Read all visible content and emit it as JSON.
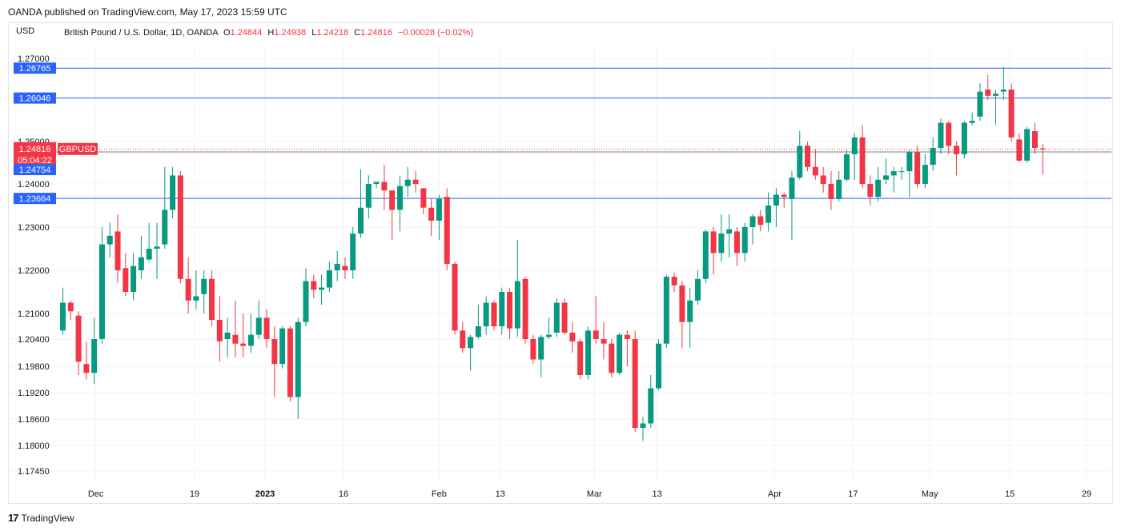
{
  "header": {
    "published": "OANDA published on TradingView.com, May 17, 2023 15:59 UTC",
    "currency": "USD",
    "legend": {
      "symbol": "British Pound / U.S. Dollar, 1D, OANDA",
      "o_label": "O",
      "o": "1.24844",
      "h_label": "H",
      "h": "1.24938",
      "l_label": "L",
      "l": "1.24218",
      "c_label": "C",
      "c": "1.24816",
      "change": "−0.00028 (−0.02%)"
    }
  },
  "footer": {
    "brand": "TradingView"
  },
  "colors": {
    "up": "#089981",
    "down": "#f23645",
    "line": "#2962ff",
    "grid": "#f0f3fa"
  },
  "chart_data": {
    "type": "candlestick",
    "y_ticks": [
      "1.27000",
      "1.25000",
      "1.24000",
      "1.23000",
      "1.22000",
      "1.21000",
      "1.20400",
      "1.19800",
      "1.19200",
      "1.18600",
      "1.18000",
      "1.17450"
    ],
    "x_ticks": [
      {
        "label": "Dec",
        "index": 4.2
      },
      {
        "label": "19",
        "index": 16.8
      },
      {
        "label": "2023",
        "index": 25.8,
        "bold": true
      },
      {
        "label": "16",
        "index": 35.8
      },
      {
        "label": "Feb",
        "index": 48.0
      },
      {
        "label": "13",
        "index": 55.8
      },
      {
        "label": "Mar",
        "index": 67.8
      },
      {
        "label": "13",
        "index": 75.8
      },
      {
        "label": "Apr",
        "index": 90.8
      },
      {
        "label": "17",
        "index": 100.8
      },
      {
        "label": "May",
        "index": 110.6
      },
      {
        "label": "15",
        "index": 120.8
      },
      {
        "label": "29",
        "index": 130.6
      }
    ],
    "horizontal_levels": [
      {
        "value": "1.26765"
      },
      {
        "value": "1.26046"
      },
      {
        "value": "1.23664"
      }
    ],
    "last_price": {
      "value": "1.24816",
      "symbol": "GBPUSD",
      "countdown": "05:04:22"
    },
    "aux_price": {
      "value": "1.24754"
    },
    "candles": [
      [
        1.206,
        1.2125,
        1.205,
        1.216
      ],
      [
        1.2125,
        1.2105,
        1.2085,
        1.213
      ],
      [
        1.2095,
        1.199,
        1.196,
        1.2105
      ],
      [
        1.1985,
        1.1965,
        1.195,
        1.2035
      ],
      [
        1.1965,
        1.204,
        1.194,
        1.209
      ],
      [
        1.204,
        1.226,
        1.203,
        1.23
      ],
      [
        1.226,
        1.228,
        1.223,
        1.231
      ],
      [
        1.229,
        1.22,
        1.217,
        1.233
      ],
      [
        1.2205,
        1.215,
        1.214,
        1.224
      ],
      [
        1.215,
        1.221,
        1.213,
        1.224
      ],
      [
        1.22,
        1.223,
        1.218,
        1.228
      ],
      [
        1.2225,
        1.225,
        1.222,
        1.231
      ],
      [
        1.225,
        1.2255,
        1.218,
        1.231
      ],
      [
        1.226,
        1.234,
        1.225,
        1.244
      ],
      [
        1.234,
        1.242,
        1.232,
        1.244
      ],
      [
        1.242,
        1.218,
        1.217,
        1.243
      ],
      [
        1.218,
        1.213,
        1.21,
        1.223
      ],
      [
        1.213,
        1.214,
        1.211,
        1.22
      ],
      [
        1.2145,
        1.218,
        1.21,
        1.22
      ],
      [
        1.218,
        1.2085,
        1.207,
        1.22
      ],
      [
        1.2085,
        1.2035,
        1.199,
        1.214
      ],
      [
        1.204,
        1.2055,
        1.2,
        1.209
      ],
      [
        1.205,
        1.203,
        1.2,
        1.213
      ],
      [
        1.203,
        1.2025,
        1.2,
        1.21
      ],
      [
        1.2025,
        1.205,
        1.201,
        1.21
      ],
      [
        1.205,
        1.209,
        1.204,
        1.213
      ],
      [
        1.209,
        1.204,
        1.202,
        1.211
      ],
      [
        1.204,
        1.1985,
        1.191,
        1.207
      ],
      [
        1.1985,
        1.2065,
        1.1975,
        1.207
      ],
      [
        1.2065,
        1.191,
        1.19,
        1.207
      ],
      [
        1.191,
        1.208,
        1.186,
        1.209
      ],
      [
        1.208,
        1.2175,
        1.207,
        1.2205
      ],
      [
        1.2175,
        1.2155,
        1.2135,
        1.219
      ],
      [
        1.2155,
        1.216,
        1.212,
        1.219
      ],
      [
        1.216,
        1.22,
        1.215,
        1.222
      ],
      [
        1.22,
        1.2215,
        1.2175,
        1.2245
      ],
      [
        1.221,
        1.22,
        1.218,
        1.223
      ],
      [
        1.22,
        1.2285,
        1.218,
        1.23
      ],
      [
        1.2285,
        1.2345,
        1.2275,
        1.2435
      ],
      [
        1.2345,
        1.24,
        1.232,
        1.242
      ],
      [
        1.24,
        1.2405,
        1.239,
        1.24
      ],
      [
        1.2405,
        1.2385,
        1.234,
        1.2445
      ],
      [
        1.2385,
        1.234,
        1.227,
        1.238
      ],
      [
        1.234,
        1.2395,
        1.229,
        1.242
      ],
      [
        1.2395,
        1.241,
        1.237,
        1.244
      ],
      [
        1.241,
        1.24,
        1.238,
        1.243
      ],
      [
        1.239,
        1.2345,
        1.233,
        1.239
      ],
      [
        1.2345,
        1.2315,
        1.228,
        1.2365
      ],
      [
        1.2315,
        1.2365,
        1.227,
        1.2375
      ],
      [
        1.237,
        1.2215,
        1.22,
        1.239
      ],
      [
        1.2215,
        1.206,
        1.205,
        1.222
      ],
      [
        1.206,
        1.202,
        1.201,
        1.208
      ],
      [
        1.202,
        1.2045,
        1.197,
        1.205
      ],
      [
        1.2045,
        1.207,
        1.204,
        1.212
      ],
      [
        1.207,
        1.2125,
        1.205,
        1.214
      ],
      [
        1.2125,
        1.207,
        1.206,
        1.213
      ],
      [
        1.207,
        1.215,
        1.205,
        1.216
      ],
      [
        1.215,
        1.2065,
        1.204,
        1.216
      ],
      [
        1.2065,
        1.2175,
        1.2045,
        1.227
      ],
      [
        1.218,
        1.204,
        1.203,
        1.2185
      ],
      [
        1.204,
        1.1995,
        1.1985,
        1.205
      ],
      [
        1.1995,
        1.2045,
        1.1955,
        1.205
      ],
      [
        1.2045,
        1.205,
        1.204,
        1.209
      ],
      [
        1.2055,
        1.2125,
        1.2045,
        1.2135
      ],
      [
        1.2125,
        1.2055,
        1.205,
        1.2135
      ],
      [
        1.2055,
        1.2035,
        1.201,
        1.208
      ],
      [
        1.2035,
        1.196,
        1.195,
        1.204
      ],
      [
        1.196,
        1.206,
        1.195,
        1.207
      ],
      [
        1.206,
        1.204,
        1.203,
        1.214
      ],
      [
        1.204,
        1.203,
        1.1995,
        1.208
      ],
      [
        1.203,
        1.1965,
        1.1955,
        1.204
      ],
      [
        1.1965,
        1.205,
        1.196,
        1.2055
      ],
      [
        1.205,
        1.204,
        1.198,
        1.206
      ],
      [
        1.204,
        1.184,
        1.183,
        1.206
      ],
      [
        1.184,
        1.185,
        1.181,
        1.1865
      ],
      [
        1.185,
        1.193,
        1.184,
        1.196
      ],
      [
        1.193,
        1.203,
        1.1925,
        1.204
      ],
      [
        1.203,
        1.2185,
        1.202,
        1.219
      ],
      [
        1.2185,
        1.2165,
        1.215,
        1.2195
      ],
      [
        1.2165,
        1.208,
        1.202,
        1.2175
      ],
      [
        1.208,
        1.213,
        1.202,
        1.216
      ],
      [
        1.213,
        1.218,
        1.212,
        1.22
      ],
      [
        1.218,
        1.229,
        1.217,
        1.2295
      ],
      [
        1.229,
        1.224,
        1.219,
        1.23
      ],
      [
        1.224,
        1.2285,
        1.222,
        1.233
      ],
      [
        1.2285,
        1.2295,
        1.223,
        1.233
      ],
      [
        1.229,
        1.224,
        1.221,
        1.23
      ],
      [
        1.224,
        1.23,
        1.222,
        1.231
      ],
      [
        1.23,
        1.2325,
        1.226,
        1.233
      ],
      [
        1.2325,
        1.2305,
        1.229,
        1.234
      ],
      [
        1.231,
        1.235,
        1.229,
        1.238
      ],
      [
        1.235,
        1.2375,
        1.23,
        1.239
      ],
      [
        1.2375,
        1.237,
        1.2345,
        1.238
      ],
      [
        1.2365,
        1.2415,
        1.227,
        1.243
      ],
      [
        1.2415,
        1.249,
        1.241,
        1.2525
      ],
      [
        1.249,
        1.244,
        1.243,
        1.25
      ],
      [
        1.244,
        1.242,
        1.241,
        1.248
      ],
      [
        1.242,
        1.24,
        1.238,
        1.244
      ],
      [
        1.24,
        1.2365,
        1.234,
        1.243
      ],
      [
        1.2365,
        1.241,
        1.236,
        1.243
      ],
      [
        1.241,
        1.247,
        1.2405,
        1.248
      ],
      [
        1.247,
        1.251,
        1.241,
        1.252
      ],
      [
        1.251,
        1.24,
        1.239,
        1.254
      ],
      [
        1.24,
        1.237,
        1.235,
        1.242
      ],
      [
        1.237,
        1.241,
        1.236,
        1.244
      ],
      [
        1.241,
        1.242,
        1.24,
        1.246
      ],
      [
        1.242,
        1.243,
        1.238,
        1.244
      ],
      [
        1.243,
        1.243,
        1.241,
        1.244
      ],
      [
        1.243,
        1.2475,
        1.237,
        1.248
      ],
      [
        1.2475,
        1.24,
        1.239,
        1.249
      ],
      [
        1.24,
        1.2445,
        1.239,
        1.247
      ],
      [
        1.2445,
        1.2485,
        1.243,
        1.251
      ],
      [
        1.2485,
        1.2545,
        1.247,
        1.2555
      ],
      [
        1.2545,
        1.249,
        1.247,
        1.255
      ],
      [
        1.249,
        1.247,
        1.242,
        1.25
      ],
      [
        1.247,
        1.2545,
        1.246,
        1.255
      ],
      [
        1.2545,
        1.255,
        1.254,
        1.257
      ],
      [
        1.256,
        1.262,
        1.255,
        1.264
      ],
      [
        1.2625,
        1.261,
        1.26,
        1.266
      ],
      [
        1.261,
        1.2615,
        1.254,
        1.2625
      ],
      [
        1.262,
        1.2625,
        1.26,
        1.268
      ],
      [
        1.2625,
        1.251,
        1.25,
        1.264
      ],
      [
        1.2505,
        1.2455,
        1.245,
        1.252
      ],
      [
        1.2455,
        1.253,
        1.245,
        1.2535
      ],
      [
        1.2525,
        1.2485,
        1.247,
        1.2545
      ],
      [
        1.2484,
        1.2482,
        1.2422,
        1.2494
      ]
    ]
  }
}
